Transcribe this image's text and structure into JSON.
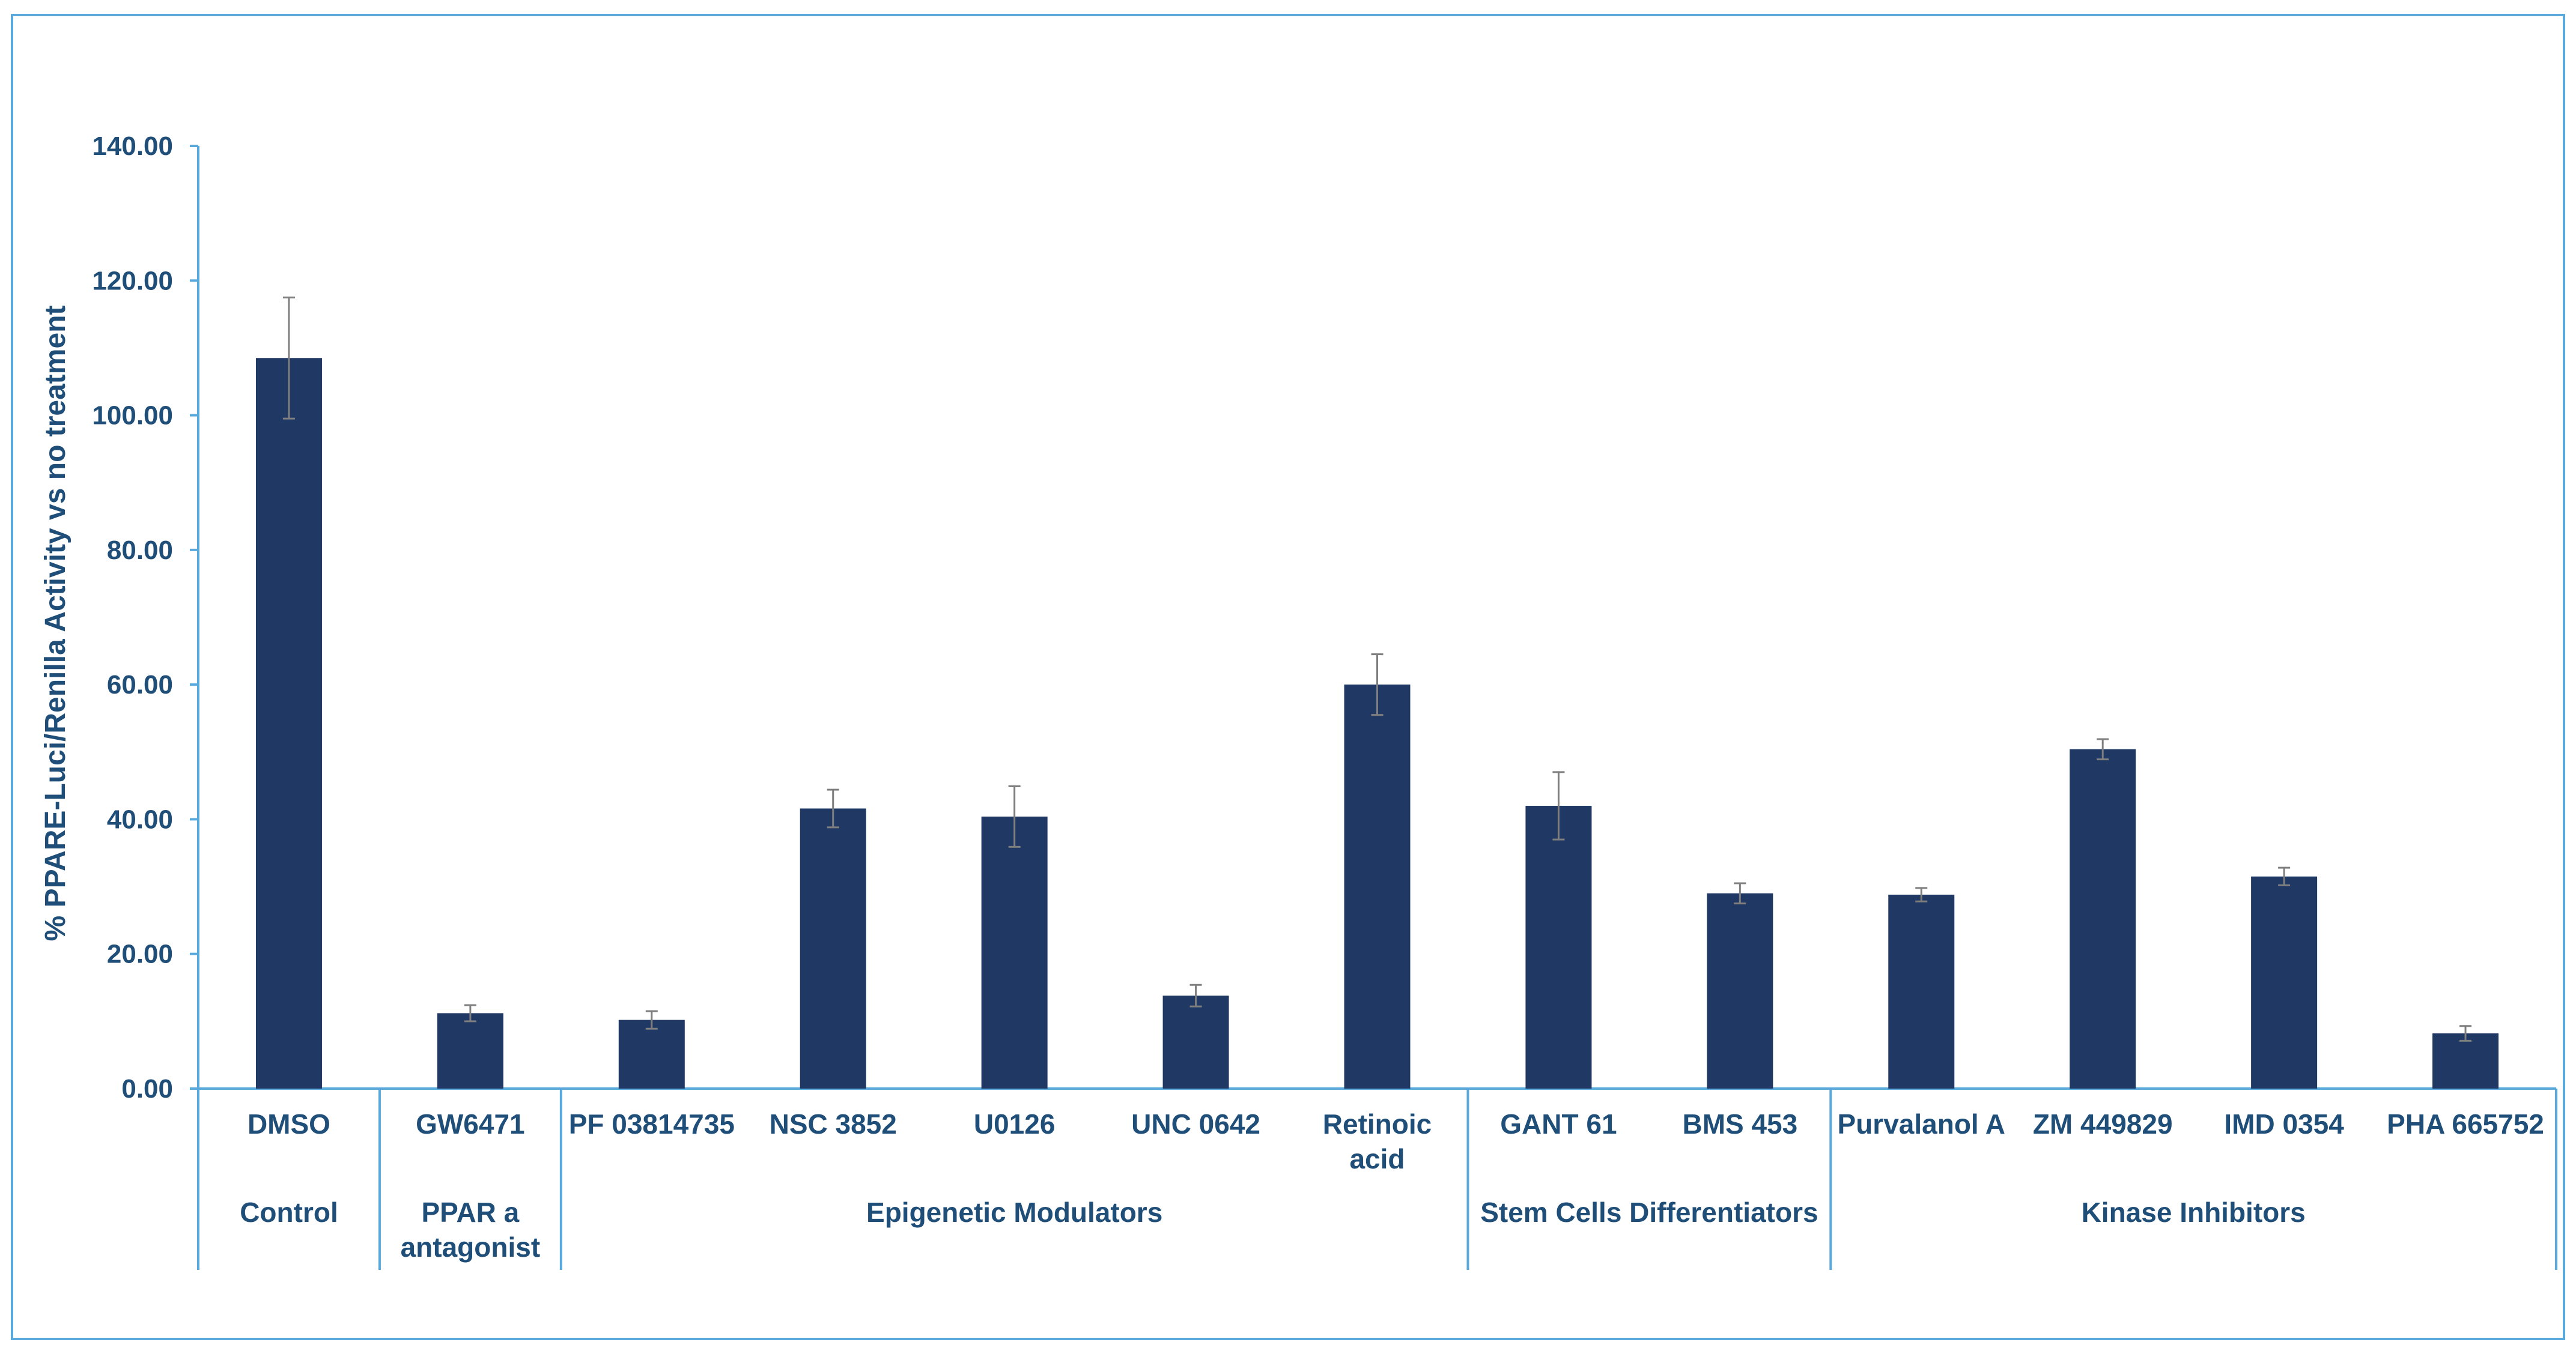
{
  "chart_data": {
    "type": "bar",
    "title": "",
    "xlabel": "",
    "ylabel": "% PPARE-Luci/Renilla  Activity vs no treatment",
    "ylim": [
      0,
      140
    ],
    "yticks": [
      "0.00",
      "20.00",
      "40.00",
      "60.00",
      "80.00",
      "100.00",
      "120.00",
      "140.00"
    ],
    "grid": false,
    "legend": "none",
    "bar_color": "#1f3864",
    "axis_color": "#5aa9dc",
    "label_color": "#1f4e79",
    "categories": [
      [
        "DMSO"
      ],
      [
        "GW6471"
      ],
      [
        "PF 03814735"
      ],
      [
        "NSC 3852"
      ],
      [
        "U0126"
      ],
      [
        "UNC 0642"
      ],
      [
        "Retinoic",
        "acid"
      ],
      [
        "GANT 61"
      ],
      [
        "BMS 453"
      ],
      [
        "Purvalanol A"
      ],
      [
        "ZM 449829"
      ],
      [
        "IMD 0354"
      ],
      [
        "PHA 665752"
      ]
    ],
    "values": [
      108.5,
      11.2,
      10.2,
      41.6,
      40.4,
      13.8,
      60.0,
      42.0,
      29.0,
      28.8,
      50.4,
      31.5,
      8.2
    ],
    "errors": [
      9.0,
      1.2,
      1.3,
      2.8,
      4.5,
      1.6,
      4.5,
      5.0,
      1.5,
      1.0,
      1.5,
      1.3,
      1.1
    ],
    "groups": [
      {
        "label": [
          "Control"
        ],
        "start": 0,
        "end": 0
      },
      {
        "label": [
          "PPAR a",
          "antagonist"
        ],
        "start": 1,
        "end": 1
      },
      {
        "label": [
          "Epigenetic Modulators"
        ],
        "start": 2,
        "end": 6
      },
      {
        "label": [
          "Stem Cells Differentiators"
        ],
        "start": 7,
        "end": 8
      },
      {
        "label": [
          "Kinase Inhibitors"
        ],
        "start": 9,
        "end": 12
      }
    ]
  }
}
